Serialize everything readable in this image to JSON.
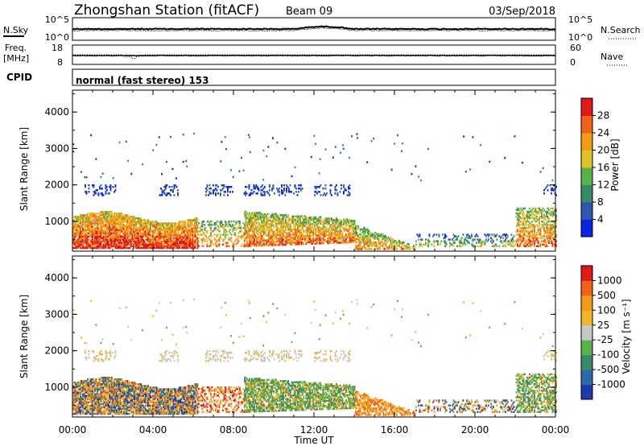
{
  "header": {
    "station": "Zhongshan Station (fitACF)",
    "beam": "Beam 09",
    "date": "03/Sep/2018"
  },
  "noise_panel": {
    "left_label": "N.Sky",
    "right_label": "N.Search",
    "left_ticks": [
      "10^5",
      "10^0"
    ],
    "right_ticks": [
      "10^5",
      "10^0"
    ]
  },
  "freq_panel": {
    "left_label_1": "Freq.",
    "left_label_2": "[MHz]",
    "left_ticks": [
      "18",
      "8"
    ],
    "right_ticks": [
      "60",
      "0"
    ],
    "right_label": "Nave"
  },
  "cpid": {
    "label": "CPID",
    "mode": "normal (fast stereo) 153"
  },
  "chart_data": [
    {
      "type": "heatmap",
      "title": "",
      "xlabel": "Time UT",
      "ylabel": "Slant Range [km]",
      "xlim": [
        "00:00",
        "24:00"
      ],
      "ylim": [
        180,
        4600
      ],
      "y_ticks": [
        "1000",
        "2000",
        "3000",
        "4000"
      ],
      "x_ticks": [
        "00:00",
        "04:00",
        "08:00",
        "12:00",
        "16:00",
        "20:00",
        "00:00"
      ],
      "grid": false,
      "colorbar": {
        "label": "Power [dB]",
        "ticks": [
          "4",
          "8",
          "12",
          "16",
          "20",
          "24",
          "28"
        ],
        "colors": [
          "#0a23e6",
          "#2d56b0",
          "#3a8a6a",
          "#58b24a",
          "#e0c22a",
          "#f49a18",
          "#f0621a",
          "#e01818"
        ]
      }
    },
    {
      "type": "heatmap",
      "title": "",
      "xlabel": "Time UT",
      "ylabel": "Slant Range [km]",
      "xlim": [
        "00:00",
        "24:00"
      ],
      "ylim": [
        180,
        4600
      ],
      "y_ticks": [
        "1000",
        "2000",
        "3000",
        "4000"
      ],
      "x_ticks": [
        "00:00",
        "04:00",
        "08:00",
        "12:00",
        "16:00",
        "20:00",
        "00:00"
      ],
      "grid": false,
      "colorbar": {
        "label": "Velocity [m s⁻¹]",
        "ticks": [
          "1000",
          "500",
          "100",
          "25",
          "-25",
          "-100",
          "-500",
          "-1000"
        ],
        "colors": [
          "#1f3ab0",
          "#2d6aa8",
          "#3a8a6a",
          "#58b24a",
          "#c8c8c8",
          "#f4b42a",
          "#f49a18",
          "#f0621a",
          "#e01818"
        ]
      }
    }
  ]
}
